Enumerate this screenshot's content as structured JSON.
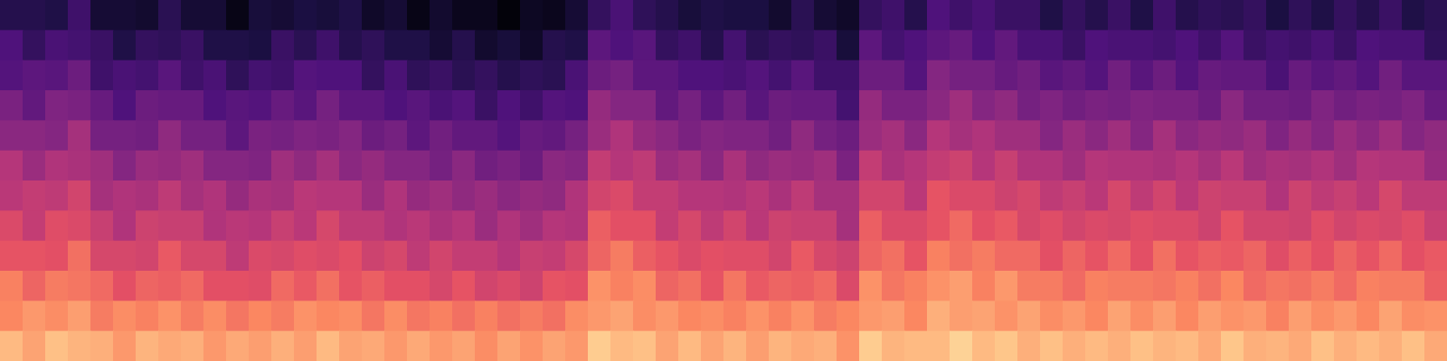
{
  "chart_data": {
    "type": "heatmap",
    "tick_labels": false,
    "xlim": [
      0,
      64
    ],
    "ylim": [
      0,
      12
    ],
    "zlim": [
      -80,
      0
    ],
    "cells": [
      [
        -68,
        -68,
        -69,
        -63,
        -72,
        -72,
        -73,
        -67,
        -72,
        -72,
        -77,
        -71,
        -72,
        -70,
        -71,
        -69,
        -74,
        -72,
        -77,
        -73,
        -76,
        -76,
        -79,
        -75,
        -76,
        -72,
        -65,
        -61,
        -66,
        -68,
        -71,
        -69,
        -70,
        -70,
        -73,
        -67,
        -72,
        -74,
        -65,
        -63,
        -68,
        -60,
        -63,
        -61,
        -64,
        -64,
        -69,
        -65,
        -68,
        -64,
        -69,
        -63,
        -68,
        -66,
        -67,
        -65,
        -70,
        -66,
        -69,
        -65,
        -68,
        -64,
        -69,
        -67
      ],
      [
        -60,
        -65,
        -61,
        -62,
        -64,
        -69,
        -65,
        -66,
        -64,
        -69,
        -69,
        -70,
        -64,
        -67,
        -63,
        -68,
        -66,
        -69,
        -69,
        -72,
        -68,
        -73,
        -71,
        -74,
        -68,
        -69,
        -57,
        -60,
        -58,
        -65,
        -63,
        -68,
        -62,
        -67,
        -65,
        -66,
        -64,
        -71,
        -57,
        -62,
        -60,
        -57,
        -55,
        -60,
        -56,
        -61,
        -61,
        -64,
        -60,
        -61,
        -61,
        -62,
        -60,
        -63,
        -59,
        -64,
        -62,
        -63,
        -61,
        -64,
        -60,
        -61,
        -61,
        -66
      ],
      [
        -59,
        -57,
        -58,
        -54,
        -63,
        -61,
        -62,
        -58,
        -63,
        -61,
        -66,
        -62,
        -63,
        -59,
        -60,
        -60,
        -65,
        -61,
        -66,
        -64,
        -67,
        -65,
        -68,
        -66,
        -67,
        -61,
        -54,
        -52,
        -57,
        -57,
        -60,
        -60,
        -61,
        -59,
        -62,
        -58,
        -63,
        -63,
        -54,
        -54,
        -59,
        -49,
        -52,
        -52,
        -55,
        -53,
        -58,
        -56,
        -59,
        -53,
        -58,
        -54,
        -59,
        -55,
        -56,
        -56,
        -61,
        -55,
        -58,
        -56,
        -59,
        -53,
        -58,
        -58
      ],
      [
        -51,
        -56,
        -50,
        -51,
        -55,
        -60,
        -54,
        -55,
        -55,
        -60,
        -58,
        -59,
        -55,
        -58,
        -52,
        -57,
        -57,
        -60,
        -58,
        -61,
        -59,
        -64,
        -60,
        -63,
        -59,
        -60,
        -46,
        -49,
        -49,
        -56,
        -52,
        -57,
        -53,
        -58,
        -54,
        -55,
        -55,
        -62,
        -46,
        -51,
        -51,
        -48,
        -44,
        -49,
        -47,
        -52,
        -50,
        -53,
        -51,
        -52,
        -50,
        -51,
        -51,
        -54,
        -48,
        -53,
        -53,
        -54,
        -50,
        -53,
        -51,
        -52,
        -50,
        -55
      ],
      [
        -48,
        -48,
        -49,
        -43,
        -52,
        -52,
        -53,
        -47,
        -52,
        -52,
        -57,
        -51,
        -52,
        -50,
        -51,
        -49,
        -54,
        -52,
        -57,
        -53,
        -56,
        -56,
        -59,
        -55,
        -56,
        -52,
        -45,
        -41,
        -46,
        -48,
        -51,
        -49,
        -50,
        -50,
        -53,
        -47,
        -52,
        -54,
        -45,
        -43,
        -48,
        -40,
        -43,
        -41,
        -44,
        -44,
        -49,
        -45,
        -48,
        -44,
        -49,
        -43,
        -48,
        -46,
        -47,
        -45,
        -50,
        -46,
        -49,
        -45,
        -48,
        -44,
        -49,
        -47
      ],
      [
        -40,
        -45,
        -41,
        -42,
        -44,
        -49,
        -45,
        -46,
        -44,
        -49,
        -49,
        -50,
        -44,
        -47,
        -43,
        -48,
        -46,
        -49,
        -49,
        -52,
        -48,
        -53,
        -51,
        -54,
        -48,
        -49,
        -37,
        -40,
        -38,
        -45,
        -43,
        -48,
        -42,
        -47,
        -45,
        -46,
        -44,
        -51,
        -37,
        -42,
        -40,
        -37,
        -35,
        -40,
        -36,
        -41,
        -41,
        -44,
        -40,
        -41,
        -41,
        -42,
        -40,
        -43,
        -39,
        -44,
        -42,
        -43,
        -41,
        -44,
        -40,
        -41,
        -41,
        -46
      ],
      [
        -39,
        -37,
        -38,
        -34,
        -43,
        -41,
        -42,
        -38,
        -43,
        -41,
        -46,
        -42,
        -43,
        -39,
        -40,
        -40,
        -45,
        -41,
        -46,
        -44,
        -47,
        -45,
        -48,
        -46,
        -47,
        -41,
        -34,
        -32,
        -37,
        -37,
        -40,
        -40,
        -41,
        -39,
        -42,
        -38,
        -43,
        -43,
        -34,
        -34,
        -39,
        -29,
        -32,
        -32,
        -35,
        -33,
        -38,
        -36,
        -39,
        -33,
        -38,
        -34,
        -39,
        -35,
        -36,
        -36,
        -41,
        -35,
        -38,
        -36,
        -39,
        -33,
        -38,
        -38
      ],
      [
        -32,
        -37,
        -31,
        -32,
        -36,
        -41,
        -35,
        -36,
        -36,
        -41,
        -39,
        -40,
        -36,
        -39,
        -33,
        -38,
        -38,
        -41,
        -39,
        -42,
        -40,
        -45,
        -41,
        -44,
        -40,
        -41,
        -27,
        -30,
        -30,
        -37,
        -33,
        -38,
        -34,
        -39,
        -35,
        -36,
        -36,
        -43,
        -27,
        -32,
        -32,
        -29,
        -25,
        -30,
        -28,
        -33,
        -31,
        -34,
        -32,
        -33,
        -31,
        -32,
        -32,
        -35,
        -29,
        -34,
        -34,
        -35,
        -31,
        -34,
        -32,
        -33,
        -31,
        -36
      ],
      [
        -29,
        -29,
        -30,
        -24,
        -33,
        -33,
        -34,
        -28,
        -33,
        -33,
        -38,
        -32,
        -33,
        -31,
        -32,
        -30,
        -35,
        -33,
        -38,
        -34,
        -37,
        -37,
        -40,
        -36,
        -37,
        -33,
        -26,
        -22,
        -27,
        -29,
        -32,
        -30,
        -31,
        -31,
        -34,
        -28,
        -33,
        -35,
        -26,
        -24,
        -29,
        -21,
        -24,
        -22,
        -25,
        -25,
        -30,
        -26,
        -29,
        -25,
        -30,
        -24,
        -29,
        -27,
        -28,
        -26,
        -31,
        -27,
        -30,
        -26,
        -29,
        -25,
        -30,
        -28
      ],
      [
        -21,
        -26,
        -22,
        -23,
        -25,
        -30,
        -26,
        -27,
        -25,
        -30,
        -30,
        -31,
        -25,
        -28,
        -24,
        -29,
        -27,
        -30,
        -30,
        -33,
        -29,
        -34,
        -32,
        -35,
        -29,
        -30,
        -18,
        -21,
        -19,
        -26,
        -24,
        -29,
        -23,
        -28,
        -26,
        -27,
        -25,
        -32,
        -18,
        -23,
        -21,
        -18,
        -16,
        -21,
        -17,
        -22,
        -22,
        -25,
        -21,
        -22,
        -22,
        -23,
        -21,
        -24,
        -20,
        -25,
        -23,
        -24,
        -22,
        -25,
        -21,
        -22,
        -22,
        -27
      ],
      [
        -20,
        -17,
        -19,
        -16,
        -22,
        -19,
        -21,
        -18,
        -22,
        -19,
        -23,
        -20,
        -22,
        -18,
        -20,
        -19,
        -23,
        -19,
        -23,
        -21,
        -24,
        -21,
        -24,
        -22,
        -24,
        -19,
        -17,
        -15,
        -19,
        -17,
        -20,
        -19,
        -21,
        -18,
        -21,
        -18,
        -22,
        -20,
        -17,
        -16,
        -20,
        -13,
        -16,
        -15,
        -18,
        -15,
        -19,
        -17,
        -20,
        -15,
        -19,
        -16,
        -20,
        -16,
        -18,
        -17,
        -21,
        -16,
        -19,
        -17,
        -20,
        -15,
        -19,
        -18
      ],
      [
        -11,
        -15,
        -10,
        -12,
        -13,
        -17,
        -12,
        -14,
        -13,
        -17,
        -14,
        -16,
        -13,
        -16,
        -11,
        -15,
        -14,
        -17,
        -14,
        -17,
        -15,
        -19,
        -15,
        -18,
        -15,
        -17,
        -8,
        -11,
        -10,
        -15,
        -11,
        -15,
        -12,
        -16,
        -12,
        -14,
        -13,
        -18,
        -8,
        -12,
        -11,
        -11,
        -7,
        -11,
        -9,
        -13,
        -10,
        -13,
        -11,
        -13,
        -10,
        -12,
        -11,
        -14,
        -9,
        -13,
        -12,
        -14,
        -10,
        -13,
        -11,
        -13,
        -10,
        -14
      ]
    ]
  }
}
